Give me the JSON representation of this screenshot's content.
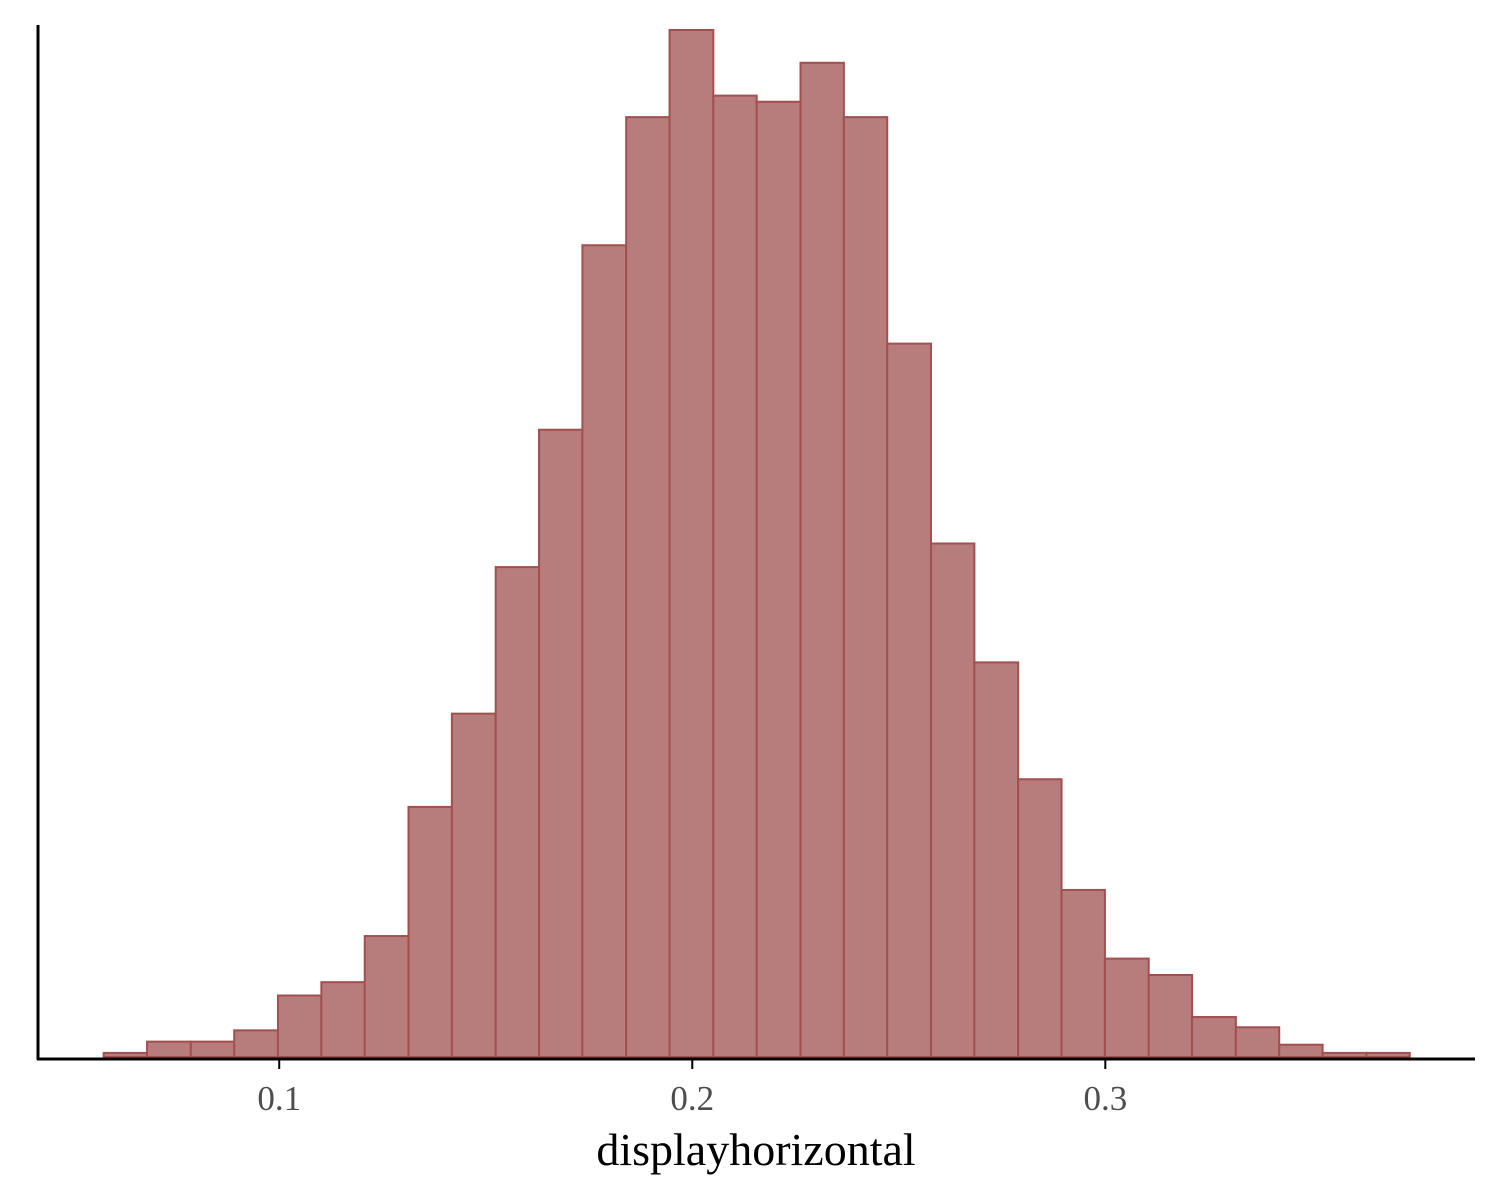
{
  "chart_data": {
    "type": "bar",
    "subtype": "histogram",
    "title": "",
    "xlabel": "displayhorizontal",
    "ylabel": "",
    "bin_edges": [
      0.0575,
      0.068,
      0.0786,
      0.0891,
      0.0997,
      0.1102,
      0.1207,
      0.1313,
      0.1418,
      0.1524,
      0.1629,
      0.1734,
      0.184,
      0.1945,
      0.2051,
      0.2156,
      0.2262,
      0.2367,
      0.2472,
      0.2578,
      0.2683,
      0.2789,
      0.2894,
      0.2999,
      0.3105,
      0.321,
      0.3316,
      0.3421,
      0.3526,
      0.3632,
      0.3737
    ],
    "counts": [
      4,
      15,
      15,
      26,
      60,
      73,
      118,
      244,
      335,
      478,
      612,
      792,
      917,
      1002,
      938,
      932,
      970,
      917,
      696,
      501,
      385,
      271,
      163,
      96,
      80,
      39,
      29,
      12,
      4,
      4
    ],
    "xlim": [
      0.0416,
      0.3895
    ],
    "ylim": [
      0,
      1002
    ],
    "x_ticks": [
      0.1,
      0.2,
      0.3
    ],
    "x_tick_labels": [
      "0.1",
      "0.2",
      "0.3"
    ],
    "y_ticks_shown": false,
    "grid": false,
    "legend": "none",
    "colors": {
      "bar_fill": "#b77c7c",
      "bar_stroke": "#a24f4f",
      "axis_line": "#000000",
      "tick_label": "#4d4d4d"
    }
  }
}
